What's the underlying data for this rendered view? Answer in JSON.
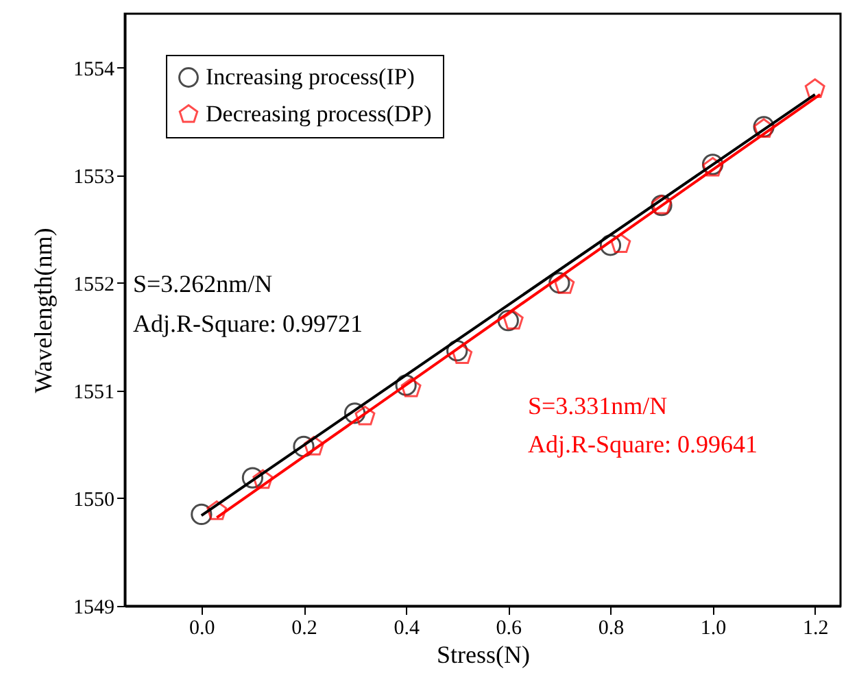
{
  "chart_data": {
    "type": "scatter",
    "xlabel": "Stress(N)",
    "ylabel": "Wavelength(nm)",
    "xlim": [
      -0.15,
      1.25
    ],
    "ylim": [
      1549,
      1554.5
    ],
    "xticks": [
      {
        "value": 0,
        "label": "0.0"
      },
      0.2,
      0.4,
      0.6,
      0.8,
      {
        "value": 1,
        "label": "1.0"
      },
      1.2
    ],
    "yticks": [
      1549,
      1550,
      1551,
      1552,
      1553,
      1554
    ],
    "grid": false,
    "legend": "top left",
    "series": [
      {
        "name": "Increasing process(IP)",
        "color": "#000000",
        "marker": "circle",
        "x": [
          0,
          0.1,
          0.2,
          0.3,
          0.4,
          0.5,
          0.6,
          0.7,
          0.8,
          0.9,
          1.0,
          1.1
        ],
        "values": [
          1549.85,
          1550.19,
          1550.48,
          1550.79,
          1551.05,
          1551.37,
          1551.65,
          1552.0,
          1552.35,
          1552.72,
          1553.1,
          1553.45
        ]
      },
      {
        "name": "Decreasing process(DP)",
        "color": "#ff0000",
        "x": [
          0.03,
          0.12,
          0.22,
          0.32,
          0.41,
          0.51,
          0.61,
          0.71,
          0.82,
          0.9,
          1.0,
          1.1,
          1.2
        ],
        "values": [
          1549.88,
          1550.17,
          1550.48,
          1550.76,
          1551.02,
          1551.33,
          1551.65,
          1551.98,
          1552.36,
          1552.72,
          1553.07,
          1553.43,
          1553.8
        ]
      },
      {
        "type": "line",
        "color": "#000000",
        "x": [
          0,
          1.2
        ],
        "values": [
          1549.84,
          1553.75
        ]
      },
      {
        "type": "line",
        "color": "#ff0000",
        "x": [
          0.03,
          1.21
        ],
        "values": [
          1549.82,
          1553.75
        ]
      }
    ],
    "annotations": [
      "S=3.262nm/N",
      "Adj.R-Square: 0.99721",
      "S=3.331nm/N",
      "Adj.R-Square: 0.99641"
    ]
  }
}
